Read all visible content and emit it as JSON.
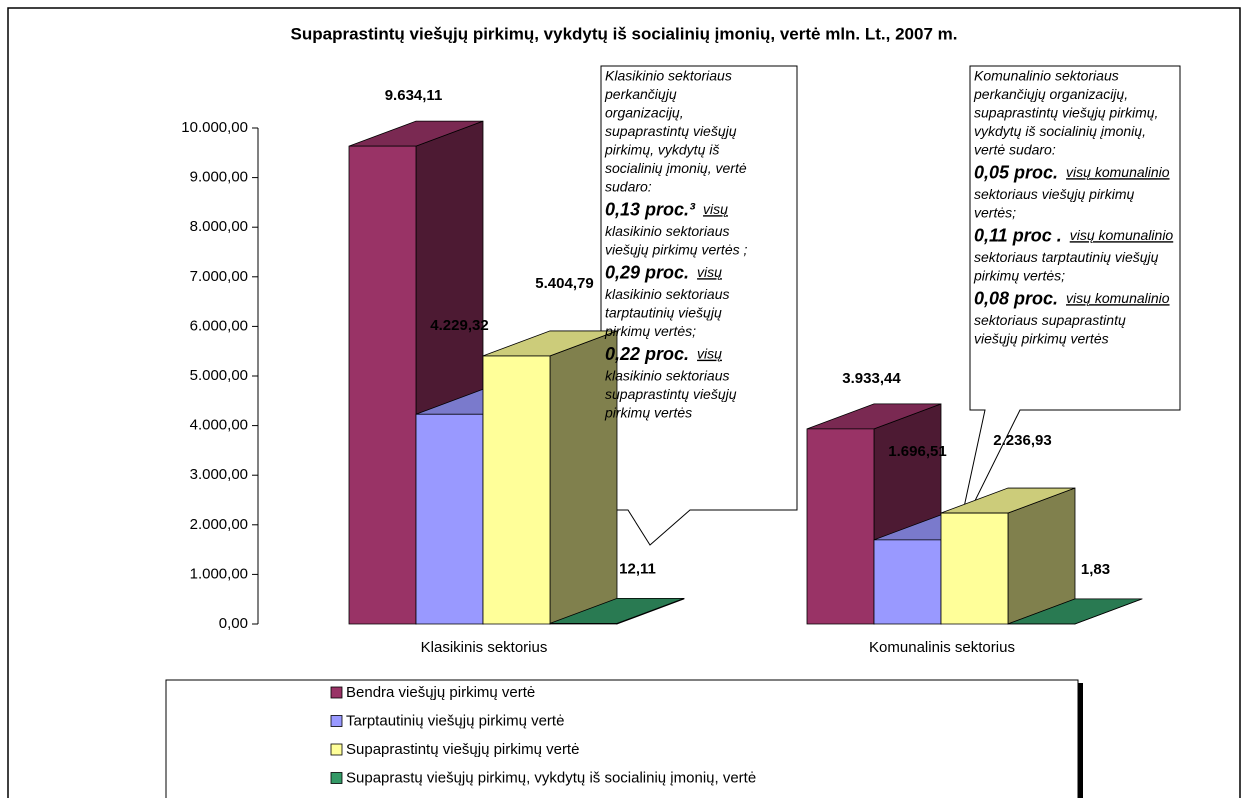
{
  "chart_data": {
    "type": "bar3d",
    "title": "Supaprastintų viešųjų pirkimų, vykdytų iš socialinių įmonių, vertė mln. Lt., 2007 m.",
    "categories": [
      "Klasikinis sektorius",
      "Komunalinis sektorius"
    ],
    "series": [
      {
        "name": "Bendra viešųjų pirkimų vertė",
        "color": "#993366",
        "values": [
          9634.11,
          3933.44
        ],
        "value_labels": [
          "9.634,11",
          "3.933,44"
        ]
      },
      {
        "name": "Tarptautinių viešųjų pirkimų vertė",
        "color": "#9999ff",
        "values": [
          4229.32,
          1696.51
        ],
        "value_labels": [
          "4.229,32",
          "1.696,51"
        ]
      },
      {
        "name": "Supaprastintų viešųjų pirkimų vertė",
        "color": "#ffff99",
        "values": [
          5404.79,
          2236.93
        ],
        "value_labels": [
          "5.404,79",
          "2.236,93"
        ]
      },
      {
        "name": "Supaprastų viešųjų pirkimų, vykdytų iš socialinių įmonių, vertė",
        "color": "#339966",
        "values": [
          12.11,
          1.83
        ],
        "value_labels": [
          "12,11",
          "1,83"
        ]
      }
    ],
    "ylim": [
      0,
      10000
    ],
    "yticks": [
      {
        "value": 0,
        "label": "0,00"
      },
      {
        "value": 1000,
        "label": "1.000,00"
      },
      {
        "value": 2000,
        "label": "2.000,00"
      },
      {
        "value": 3000,
        "label": "3.000,00"
      },
      {
        "value": 4000,
        "label": "4.000,00"
      },
      {
        "value": 5000,
        "label": "5.000,00"
      },
      {
        "value": 6000,
        "label": "6.000,00"
      },
      {
        "value": 7000,
        "label": "7.000,00"
      },
      {
        "value": 8000,
        "label": "8.000,00"
      },
      {
        "value": 9000,
        "label": "9.000,00"
      },
      {
        "value": 10000,
        "label": "10.000,00"
      }
    ],
    "annotations": [
      {
        "lines": [
          "Klasikinio sektoriaus",
          "perkančiųjų",
          "organizacijų,",
          "supaprastintų viešųjų",
          "pirkimų, vykdytų iš",
          "socialinių įmonių, vertė",
          "sudaro:",
          [
            "0,13 proc.³",
            "visų"
          ],
          "klasikinio sektoriaus",
          "viešųjų pirkimų vertės ;",
          [
            "0,29 proc.",
            "visų"
          ],
          "klasikinio sektoriaus",
          "tarptautinių viešųjų",
          "pirkimų vertės;",
          [
            "0,22 proc.",
            "visų"
          ],
          "klasikinio sektoriaus",
          "supaprastintų viešųjų",
          "pirkimų vertės"
        ]
      },
      {
        "lines": [
          "Komunalinio sektoriaus",
          "perkančiųjų organizacijų,",
          "supaprastintų viešųjų pirkimų,",
          "vykdytų iš socialinių įmonių,",
          "vertė sudaro:",
          [
            "0,05 proc.",
            "visų komunalinio"
          ],
          "sektoriaus viešųjų pirkimų",
          "vertės;",
          [
            "0,11 proc .",
            "visų komunalinio"
          ],
          "sektoriaus tarptautinių viešųjų",
          "pirkimų vertės;",
          [
            "0,08 proc.",
            "visų komunalinio"
          ],
          "sektoriaus supaprastintų",
          "viešųjų pirkimų vertės"
        ]
      }
    ]
  }
}
